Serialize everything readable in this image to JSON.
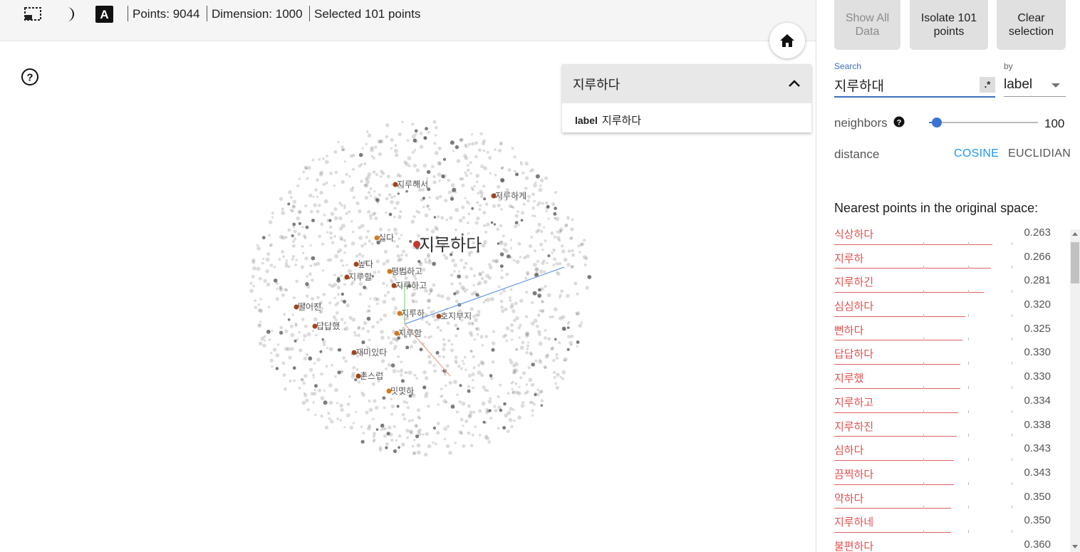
{
  "toolbar": {
    "points_text": "Points: 9044",
    "dimension_text": "Dimension: 1000",
    "selected_text": "Selected 101 points"
  },
  "inspector": {
    "title": "지루하다",
    "field_name": "label",
    "field_value": "지루하다"
  },
  "actions": {
    "show_all": "Show All Data",
    "isolate": "Isolate 101 points",
    "clear": "Clear selection"
  },
  "search": {
    "label": "Search",
    "value": "지루하대",
    "regex_label": ".*",
    "by_label": "by",
    "by_value": "label"
  },
  "neighbors": {
    "label": "neighbors",
    "value": "100",
    "fraction": 0.08
  },
  "distance": {
    "label": "distance",
    "options": [
      "COSINE",
      "EUCLIDIAN"
    ],
    "selected": "COSINE"
  },
  "nearest": {
    "title": "Nearest points in the original space:",
    "items": [
      {
        "word": "식상하다",
        "dist": "0.263"
      },
      {
        "word": "지루하",
        "dist": "0.266"
      },
      {
        "word": "지루하긴",
        "dist": "0.281"
      },
      {
        "word": "심심하다",
        "dist": "0.320"
      },
      {
        "word": "뻔하다",
        "dist": "0.325"
      },
      {
        "word": "답답하다",
        "dist": "0.330"
      },
      {
        "word": "지루했",
        "dist": "0.330"
      },
      {
        "word": "지루하고",
        "dist": "0.334"
      },
      {
        "word": "지루하진",
        "dist": "0.338"
      },
      {
        "word": "심하다",
        "dist": "0.343"
      },
      {
        "word": "끔찍하다",
        "dist": "0.343"
      },
      {
        "word": "약하다",
        "dist": "0.350"
      },
      {
        "word": "지루하네",
        "dist": "0.350"
      },
      {
        "word": "불편하다",
        "dist": "0.360"
      }
    ]
  },
  "plot_labels": [
    {
      "text": "지루하다",
      "main": true
    },
    {
      "text": "지루해서"
    },
    {
      "text": "지루하게"
    },
    {
      "text": "싫다"
    },
    {
      "text": "높다"
    },
    {
      "text": "지루할"
    },
    {
      "text": "평범하고"
    },
    {
      "text": "지루하고"
    },
    {
      "text": "떨어진"
    },
    {
      "text": "지루하"
    },
    {
      "text": "호지부지"
    },
    {
      "text": "답답했"
    },
    {
      "text": "지루함"
    },
    {
      "text": "재미있다"
    },
    {
      "text": "촌스럽"
    },
    {
      "text": "밋밋하"
    }
  ],
  "colors": {
    "accent": "#3b73d1",
    "neighbor": "#e05050",
    "cosine": "#2196f3"
  }
}
